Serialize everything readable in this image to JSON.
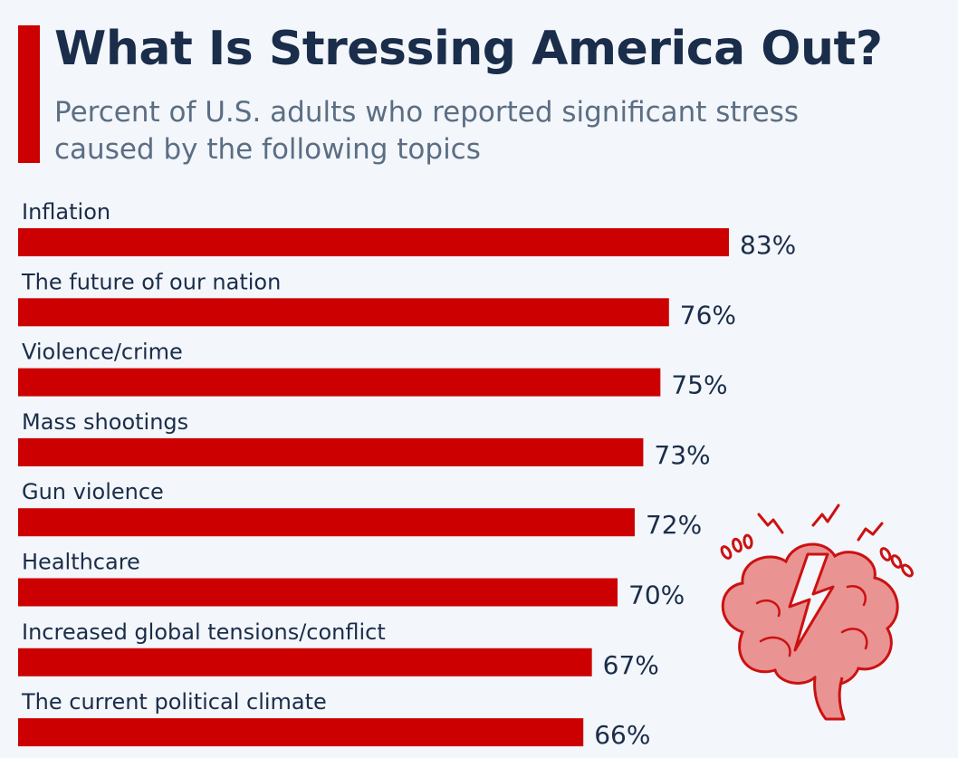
{
  "title": "What Is Stressing America Out?",
  "subtitle": "Percent of U.S. adults who reported significant stress caused by the following topics",
  "colors": {
    "bar": "#cc0000",
    "title": "#1a2d4a",
    "subtitle": "#5b6e84",
    "label": "#1a2d4a",
    "background": "#f3f6fa"
  },
  "icons": [
    "brain-stress-icon"
  ],
  "chart_data": {
    "type": "bar",
    "orientation": "horizontal",
    "categories": [
      "Inflation",
      "The future of our nation",
      "Violence/crime",
      "Mass shootings",
      "Gun violence",
      "Healthcare",
      "Increased global tensions/conflict",
      "The current political climate"
    ],
    "values": [
      83,
      76,
      75,
      73,
      72,
      70,
      67,
      66
    ],
    "value_labels": [
      "83%",
      "76%",
      "75%",
      "73%",
      "72%",
      "70%",
      "67%",
      "66%"
    ],
    "xlim": [
      0,
      100
    ],
    "grid": false,
    "legend": "none"
  }
}
